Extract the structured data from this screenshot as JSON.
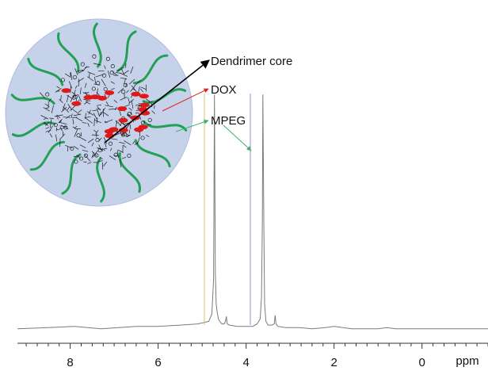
{
  "chart_data": {
    "type": "line",
    "title": "",
    "xlabel": "ppm",
    "ylabel": "",
    "x_axis_reversed": true,
    "xlim": [
      9.2,
      -1.5
    ],
    "ylim": [
      0,
      1
    ],
    "grid": false,
    "tick_labels": [
      "8",
      "6",
      "4",
      "2",
      "0"
    ],
    "tick_values": [
      8,
      6,
      4,
      2,
      0
    ],
    "series": [
      {
        "name": "",
        "x": [
          9.2,
          8.5,
          7.9,
          7.3,
          6.9,
          6.5,
          6.0,
          5.5,
          5.1,
          4.85,
          4.78,
          4.74,
          4.72,
          4.7,
          4.68,
          4.66,
          4.63,
          4.6,
          4.55,
          4.5,
          4.47,
          4.45,
          4.43,
          4.38,
          4.2,
          4.0,
          3.85,
          3.75,
          3.68,
          3.65,
          3.63,
          3.62,
          3.6,
          3.58,
          3.55,
          3.5,
          3.42,
          3.36,
          3.34,
          3.32,
          3.28,
          3.1,
          2.8,
          2.5,
          2.2,
          2.0,
          1.8,
          1.6,
          1.3,
          1.0,
          0.8,
          0.6,
          0.3,
          0.0,
          -0.5,
          -1.0,
          -1.5
        ],
        "y": [
          0.02,
          0.025,
          0.03,
          0.02,
          0.025,
          0.03,
          0.03,
          0.035,
          0.04,
          0.05,
          0.08,
          0.22,
          0.97,
          0.25,
          0.12,
          0.09,
          0.06,
          0.05,
          0.04,
          0.04,
          0.05,
          0.07,
          0.04,
          0.035,
          0.03,
          0.03,
          0.03,
          0.04,
          0.06,
          0.15,
          0.46,
          0.97,
          0.5,
          0.12,
          0.05,
          0.035,
          0.035,
          0.04,
          0.075,
          0.04,
          0.03,
          0.025,
          0.025,
          0.02,
          0.025,
          0.03,
          0.025,
          0.02,
          0.02,
          0.02,
          0.025,
          0.02,
          0.02,
          0.02,
          0.02,
          0.02,
          0.02
        ],
        "color": "#7b7b7b"
      }
    ],
    "annotations": [
      {
        "text": "Dendrimer core",
        "arrow_color": "#000000"
      },
      {
        "text": "DOX",
        "arrow_color": "#e02020"
      },
      {
        "text": "MPEG",
        "arrow_color": "#3bb36a"
      }
    ]
  },
  "colors": {
    "spectrum": "#7b7b7b",
    "sphere_fill": "#c6d2ea",
    "sphere_edge": "#aebdde",
    "peg_chain": "#22a055",
    "dox": "#e01818",
    "core": "#1a1a1a"
  },
  "illustration": {
    "name": "dendrimer-micelle-illustration",
    "red_dots_count": 20,
    "chain_count": 14
  }
}
